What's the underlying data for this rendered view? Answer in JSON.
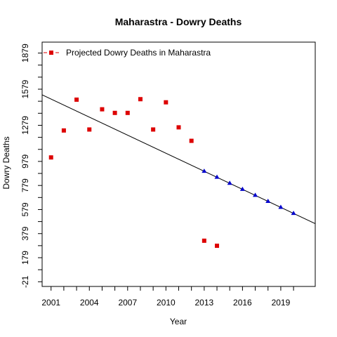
{
  "chart_data": {
    "type": "scatter",
    "title": "Maharastra  -  Dowry Deaths",
    "xlabel": "Year",
    "ylabel": "Dowry Deaths",
    "xlim": [
      2000.3,
      2021.7
    ],
    "ylim": [
      -60,
      1970
    ],
    "x_ticks": [
      2001,
      2002,
      2003,
      2004,
      2005,
      2006,
      2007,
      2008,
      2009,
      2010,
      2011,
      2012,
      2013,
      2014,
      2015,
      2016,
      2017,
      2018,
      2019,
      2020
    ],
    "x_tick_labels": [
      {
        "value": 2001,
        "label": "2001"
      },
      {
        "value": 2004,
        "label": "2004"
      },
      {
        "value": 2007,
        "label": "2007"
      },
      {
        "value": 2010,
        "label": "2010"
      },
      {
        "value": 2013,
        "label": "2013"
      },
      {
        "value": 2016,
        "label": "2016"
      },
      {
        "value": 2019,
        "label": "2019"
      }
    ],
    "y_ticks": [
      -21,
      79,
      179,
      279,
      379,
      479,
      579,
      679,
      779,
      879,
      979,
      1079,
      1179,
      1279,
      1379,
      1479,
      1579,
      1679,
      1779,
      1879
    ],
    "y_tick_labels": [
      {
        "value": -21,
        "label": "-21"
      },
      {
        "value": 179,
        "label": "179"
      },
      {
        "value": 379,
        "label": "379"
      },
      {
        "value": 579,
        "label": "579"
      },
      {
        "value": 779,
        "label": "779"
      },
      {
        "value": 979,
        "label": "979"
      },
      {
        "value": 1279,
        "label": "1279"
      },
      {
        "value": 1579,
        "label": "1579"
      },
      {
        "value": 1879,
        "label": "1879"
      }
    ],
    "legend": {
      "label": "Projected  Dowry Deaths  in  Maharastra",
      "position": "top-left"
    },
    "series": [
      {
        "kind": "observed",
        "marker": "square",
        "color": "#dd0000",
        "x": [
          2001,
          2002,
          2003,
          2004,
          2005,
          2006,
          2007,
          2008,
          2009,
          2010,
          2011,
          2012,
          2013,
          2014
        ],
        "y": [
          1012,
          1236,
          1492,
          1244,
          1412,
          1382,
          1382,
          1496,
          1244,
          1470,
          1262,
          1150,
          320,
          278
        ]
      },
      {
        "kind": "projected",
        "marker": "triangle",
        "color": "#0000cc",
        "x": [
          2013,
          2014,
          2015,
          2016,
          2017,
          2018,
          2019,
          2020
        ],
        "y": [
          899,
          849,
          799,
          749,
          699,
          649,
          599,
          549
        ]
      }
    ],
    "trend_line": {
      "color": "#000000",
      "x": [
        2000.3,
        2021.7
      ],
      "y": [
        1532,
        462
      ]
    },
    "grid": false
  }
}
